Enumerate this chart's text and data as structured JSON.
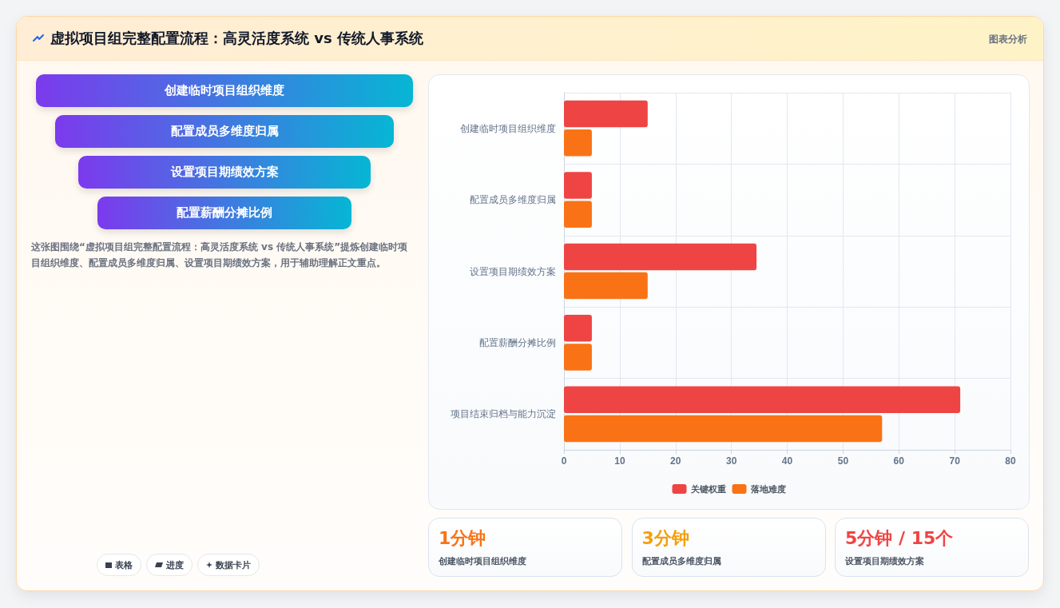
{
  "chart_data": [
    {
      "type": "other",
      "title": "虚拟项目组完整配置流程：高灵活度系统 vs 传统人事系统",
      "annotations": [
        "图表分析"
      ]
    },
    {
      "type": "other",
      "categories": [
        "创建临时项目组织维度",
        "配置成员多维度归属",
        "设置项目期绩效方案",
        "配置薪酬分摊比例"
      ],
      "annotations": [
        "这张图围绕“虚拟项目组完整配置流程：高灵活度系统 vs 传统人事系统”提炼创建临时项目组织维度、配置成员多维度归属、设置项目期绩效方案，用于辅助理解正文重点。",
        "表格",
        "进度",
        "数据卡片"
      ]
    },
    {
      "type": "bar",
      "orientation": "horizontal",
      "categories": [
        "创建临时项目组织维度",
        "配置成员多维度归属",
        "设置项目期绩效方案",
        "配置薪酬分摊比例",
        "项目结束归档与能力沉淀"
      ],
      "series": [
        {
          "name": "关键权重",
          "color": "#ef4444",
          "values": [
            15,
            5,
            34.5,
            5,
            71
          ]
        },
        {
          "name": "落地难度",
          "color": "#f97316",
          "values": [
            5,
            5,
            15,
            5,
            57
          ]
        }
      ],
      "xlim": [
        0,
        80
      ],
      "xticks": [
        0,
        10,
        20,
        30,
        40,
        50,
        60,
        70,
        80
      ],
      "grid": true,
      "legend": "bottom"
    },
    {
      "type": "other",
      "annotations": [
        "1分钟",
        "创建临时项目组织维度",
        "3分钟",
        "配置成员多维度归属",
        "5分钟 / 15个",
        "设置项目期绩效方案"
      ]
    }
  ]
}
